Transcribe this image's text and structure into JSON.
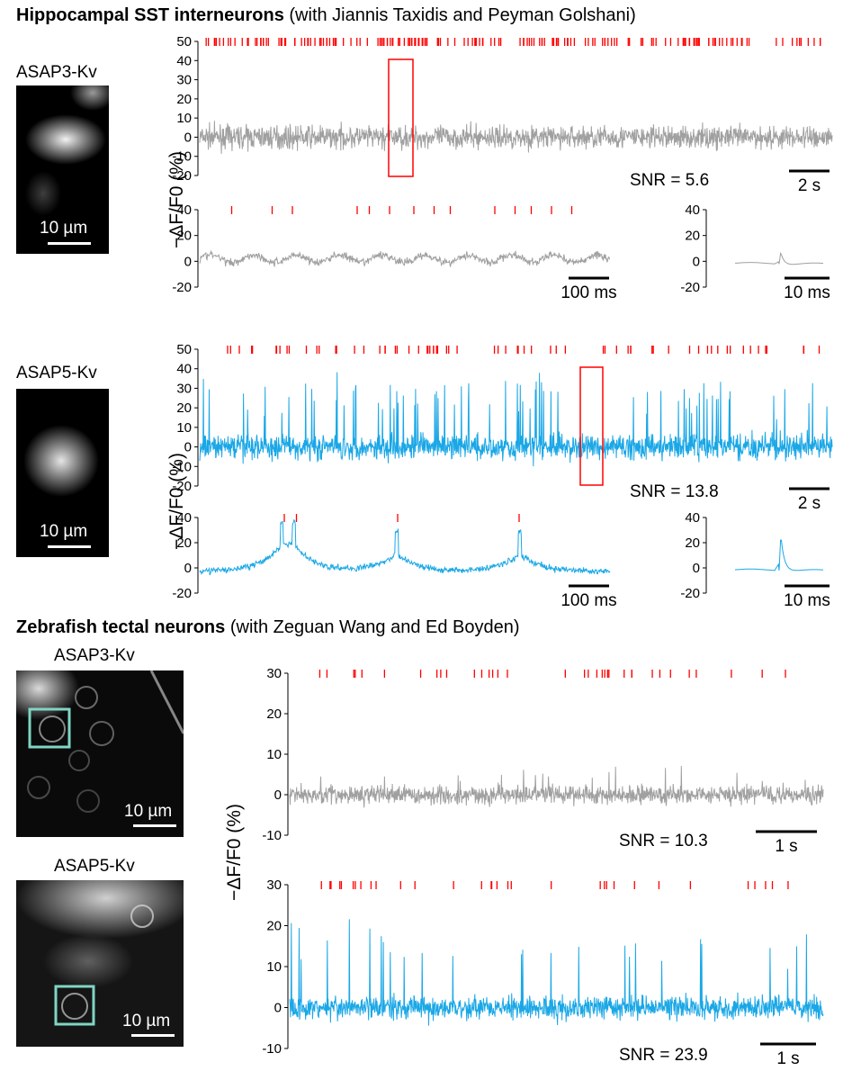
{
  "sections": {
    "hippo": {
      "title_bold": "Hippocampal SST interneurons",
      "title_rest": "(with Jiannis Taxidis and Peyman Golshani)"
    },
    "zebra": {
      "title_bold": "Zebrafish tectal neurons",
      "title_rest": "(with Zeguan Wang and Ed Boyden)"
    }
  },
  "labels": {
    "hippo_asap3": "ASAP3-Kv",
    "hippo_asap5": "ASAP5-Kv",
    "zebra_asap3": "ASAP3-Kv",
    "zebra_asap5": "ASAP5-Kv",
    "scale_10um": "10 µm",
    "ylabel": "−ΔF/F0 (%)"
  },
  "colors": {
    "asap3_trace": "#a0a0a0",
    "asap5_trace": "#1aa7e6",
    "spike_ticks": "#ff0000",
    "roi_box": "#7fd6c4"
  },
  "chart_data": [
    {
      "id": "hippo_asap3_full",
      "type": "line",
      "series": [
        {
          "name": "ASAP3-Kv",
          "color": "#a0a0a0"
        }
      ],
      "yticks": [
        "50",
        "40",
        "30",
        "20",
        "10",
        "0",
        "-10",
        "-20"
      ],
      "ylim": [
        -20,
        50
      ],
      "annotation": "SNR = 5.6",
      "scalebar": "2 s",
      "spike_row_y": 47,
      "highlight_box": true
    },
    {
      "id": "hippo_asap3_zoom",
      "type": "line",
      "yticks": [
        "40",
        "20",
        "0",
        "-20"
      ],
      "ylim": [
        -20,
        40
      ],
      "scalebar": "100 ms",
      "spike_times": [
        0.07,
        0.17,
        0.22,
        0.38,
        0.41,
        0.46,
        0.52,
        0.57,
        0.61,
        0.72,
        0.77,
        0.81,
        0.86,
        0.91
      ]
    },
    {
      "id": "hippo_asap3_avg",
      "type": "line",
      "yticks": [
        "40",
        "20",
        "0",
        "-20"
      ],
      "ylim": [
        -20,
        40
      ],
      "scalebar": "10 ms",
      "peak_value": 10
    },
    {
      "id": "hippo_asap5_full",
      "type": "line",
      "series": [
        {
          "name": "ASAP5-Kv",
          "color": "#1aa7e6"
        }
      ],
      "yticks": [
        "50",
        "40",
        "30",
        "20",
        "10",
        "0",
        "-10",
        "-20"
      ],
      "ylim": [
        -20,
        50
      ],
      "annotation": "SNR = 13.8",
      "scalebar": "2 s",
      "highlight_box": true
    },
    {
      "id": "hippo_asap5_zoom",
      "type": "line",
      "yticks": [
        "40",
        "20",
        "0",
        "-20"
      ],
      "ylim": [
        -20,
        40
      ],
      "scalebar": "100 ms",
      "spike_times": [
        0.2,
        0.23,
        0.48,
        0.78
      ]
    },
    {
      "id": "hippo_asap5_avg",
      "type": "line",
      "yticks": [
        "40",
        "20",
        "0",
        "-20"
      ],
      "ylim": [
        -20,
        40
      ],
      "scalebar": "10 ms",
      "peak_value": 29
    },
    {
      "id": "zebra_asap3",
      "type": "line",
      "yticks": [
        "30",
        "20",
        "10",
        "0",
        "-10"
      ],
      "ylim": [
        -10,
        30
      ],
      "annotation": "SNR = 10.3",
      "scalebar": "1 s"
    },
    {
      "id": "zebra_asap5",
      "type": "line",
      "yticks": [
        "30",
        "20",
        "10",
        "0",
        "-10"
      ],
      "ylim": [
        -10,
        30
      ],
      "annotation": "SNR = 23.9",
      "scalebar": "1 s"
    }
  ]
}
